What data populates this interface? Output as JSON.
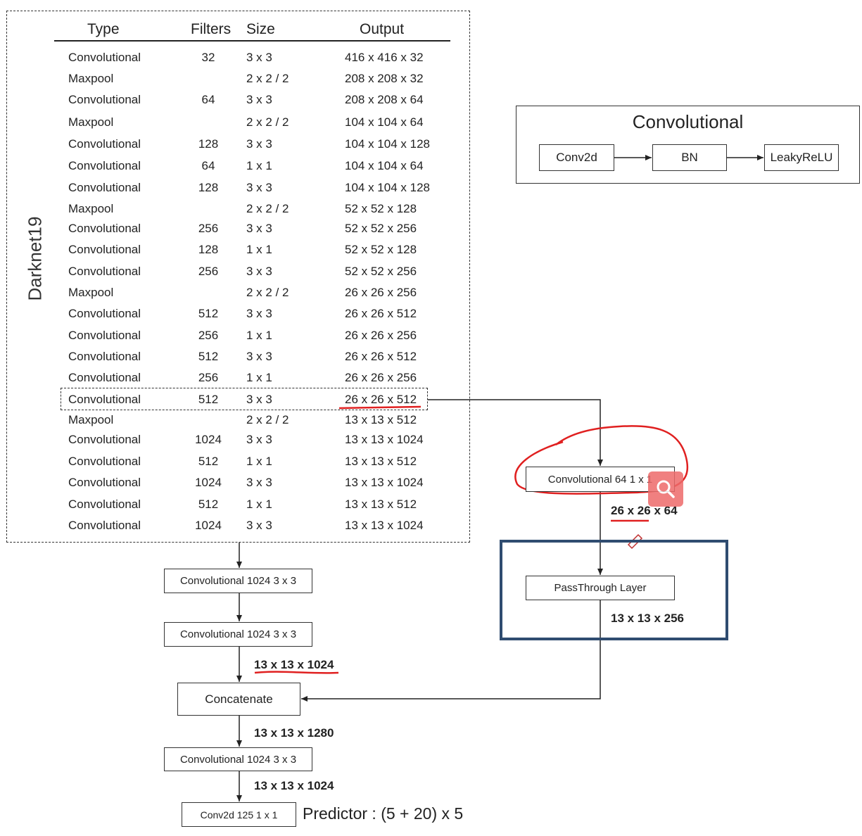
{
  "darknet": {
    "title": "Darknet19",
    "headers": {
      "type": "Type",
      "filters": "Filters",
      "size": "Size",
      "output": "Output"
    },
    "rows": [
      {
        "type": "Convolutional",
        "filters": "32",
        "size": "3 x 3",
        "output": "416 x 416 x 32"
      },
      {
        "type": "Maxpool",
        "filters": "",
        "size": "2 x 2 / 2",
        "output": "208 x 208 x 32"
      },
      {
        "type": "Convolutional",
        "filters": "64",
        "size": "3 x 3",
        "output": "208 x 208 x 64"
      },
      {
        "type": "Maxpool",
        "filters": "",
        "size": "2 x 2 / 2",
        "output": "104 x 104 x 64"
      },
      {
        "type": "Convolutional",
        "filters": "128",
        "size": "3 x 3",
        "output": "104 x 104 x 128"
      },
      {
        "type": "Convolutional",
        "filters": "64",
        "size": "1 x 1",
        "output": "104 x 104 x 64"
      },
      {
        "type": "Convolutional",
        "filters": "128",
        "size": "3 x 3",
        "output": "104 x 104 x 128"
      },
      {
        "type": "Maxpool",
        "filters": "",
        "size": "2 x 2 / 2",
        "output": "52 x 52 x 128"
      },
      {
        "type": "Convolutional",
        "filters": "256",
        "size": "3 x 3",
        "output": "52 x 52 x 256"
      },
      {
        "type": "Convolutional",
        "filters": "128",
        "size": "1 x 1",
        "output": "52 x 52 x 128"
      },
      {
        "type": "Convolutional",
        "filters": "256",
        "size": "3 x 3",
        "output": "52 x 52 x 256"
      },
      {
        "type": "Maxpool",
        "filters": "",
        "size": "2 x 2 / 2",
        "output": "26 x 26 x 256"
      },
      {
        "type": "Convolutional",
        "filters": "512",
        "size": "3 x 3",
        "output": "26 x 26 x 512"
      },
      {
        "type": "Convolutional",
        "filters": "256",
        "size": "1 x 1",
        "output": "26 x 26 x 256"
      },
      {
        "type": "Convolutional",
        "filters": "512",
        "size": "3 x 3",
        "output": "26 x 26 x 512"
      },
      {
        "type": "Convolutional",
        "filters": "256",
        "size": "1 x 1",
        "output": "26 x 26 x 256"
      },
      {
        "type": "Convolutional",
        "filters": "512",
        "size": "3 x 3",
        "output": "26 x 26 x 512"
      },
      {
        "type": "Maxpool",
        "filters": "",
        "size": "2 x 2 / 2",
        "output": "13 x 13 x 512"
      },
      {
        "type": "Convolutional",
        "filters": "1024",
        "size": "3 x 3",
        "output": "13 x 13 x 1024"
      },
      {
        "type": "Convolutional",
        "filters": "512",
        "size": "1 x 1",
        "output": "13 x 13 x 512"
      },
      {
        "type": "Convolutional",
        "filters": "1024",
        "size": "3 x 3",
        "output": "13 x 13 x 1024"
      },
      {
        "type": "Convolutional",
        "filters": "512",
        "size": "1 x 1",
        "output": "13 x 13 x 512"
      },
      {
        "type": "Convolutional",
        "filters": "1024",
        "size": "3 x 3",
        "output": "13 x 13 x 1024"
      }
    ]
  },
  "legend": {
    "title": "Convolutional",
    "blocks": [
      "Conv2d",
      "BN",
      "LeakyReLU"
    ]
  },
  "head": {
    "conv_a": "Convolutional   1024  3 x 3",
    "conv_b": "Convolutional   1024  3 x 3",
    "out_b": "13 x 13 x 1024",
    "concat": "Concatenate",
    "out_concat": "13 x 13 x 1280",
    "conv_c": "Convolutional   1024  3 x 3",
    "out_c": "13 x 13 x 1024",
    "final": "Conv2d   125  1 x 1",
    "predictor": "Predictor : (5 + 20) x 5"
  },
  "branch": {
    "conv": "Convolutional  64    1 x 1",
    "out_conv": "26 x 26 x 64",
    "passthrough": "PassThrough Layer",
    "out_passthrough": "13 x 13 x 256"
  },
  "colors": {
    "annotation_red": "#e02020",
    "passthrough_border": "#2f4c70",
    "zoom_badge": "#ee6a6a"
  }
}
